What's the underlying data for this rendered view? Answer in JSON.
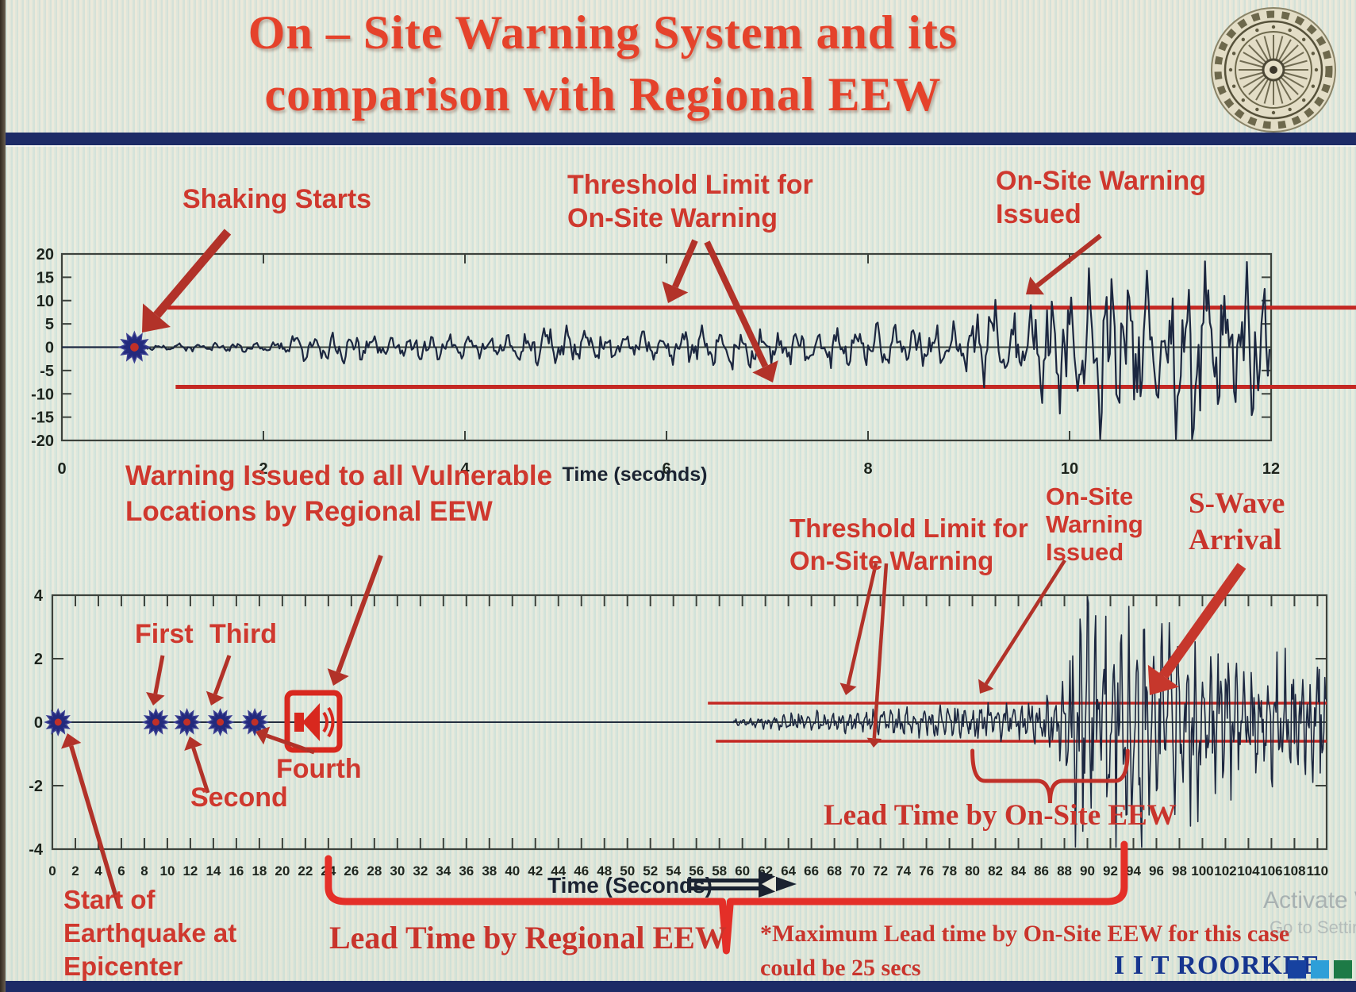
{
  "header": {
    "title_line1": "On – Site Warning System and its",
    "title_line2": "comparison with Regional EEW",
    "logo_name": "iit-roorkee-emblem"
  },
  "top_section": {
    "annotations": {
      "shaking_starts": "Shaking Starts",
      "threshold_limit": "Threshold Limit for\nOn-Site Warning",
      "warning_issued": "On-Site Warning\nIssued"
    }
  },
  "bottom_section": {
    "annotations": {
      "regional_warning": "Warning Issued to all Vulnerable\nLocations by Regional EEW",
      "first": "First",
      "third": "Third",
      "second": "Second",
      "fourth": "Fourth",
      "threshold_limit": "Threshold Limit for\nOn-Site Warning",
      "onsite_issued": "On-Site\nWarning\nIssued",
      "swave": "S-Wave\nArrival",
      "lead_onsite": "Lead Time by On-Site EEW",
      "lead_regional": "Lead Time by Regional EEW",
      "start_quake": "Start of\nEarthquake at\nEpicenter",
      "max_note_1": "*Maximum Lead time by On-Site EEW for this case",
      "max_note_2": "could be 25 secs"
    }
  },
  "footer": {
    "brand": "I I T ROORKEE",
    "squares": [
      "#1742a0",
      "#2e9fd8",
      "#1d7a46"
    ]
  },
  "watermark": {
    "line1": "Activate Win",
    "line2": "Go to Settings"
  },
  "colors": {
    "title_red": "#e5422b",
    "annotation_red": "#cf382e",
    "serif_red": "#c9342c",
    "arrow_red": "#b23229",
    "threshold_red": "#c42823",
    "bracket_red": "#e42f28",
    "waveform_navy": "#1c2740",
    "axis": "#3c423c",
    "tick_text": "#1d241d",
    "navy_bar": "#1d2b66",
    "brand_navy": "#16358f",
    "marker_blue": "#232a7d",
    "marker_center_red": "#c03028"
  },
  "chart_data": [
    {
      "type": "line",
      "title": "",
      "xlabel": "Time (seconds)",
      "ylabel": "",
      "xlim": [
        0,
        12
      ],
      "ylim": [
        -20,
        20
      ],
      "xticks": [
        0,
        2,
        4,
        6,
        8,
        10,
        12
      ],
      "yticks": [
        20,
        15,
        10,
        5,
        0,
        -5,
        -10,
        -15,
        -20
      ],
      "grid": false,
      "thresholds": [
        8.5,
        -8.5
      ],
      "threshold_span": [
        1.05,
        12.85
      ],
      "events": [
        {
          "name": "shaking-starts",
          "x": 0.72,
          "y": 0
        },
        {
          "name": "onsite-warning-issued",
          "x": 9.2,
          "y": 8.5
        }
      ],
      "envelope": [
        [
          0,
          0
        ],
        [
          0.7,
          0
        ],
        [
          0.78,
          0.6
        ],
        [
          1.4,
          0.8
        ],
        [
          2.1,
          1.1
        ],
        [
          2.45,
          3.6
        ],
        [
          2.8,
          3.2
        ],
        [
          3.2,
          2.1
        ],
        [
          3.7,
          2.7
        ],
        [
          4.2,
          2.0
        ],
        [
          4.7,
          3.2
        ],
        [
          5.1,
          4.1
        ],
        [
          5.5,
          2.6
        ],
        [
          6.0,
          3.0
        ],
        [
          6.5,
          4.3
        ],
        [
          7.0,
          3.3
        ],
        [
          7.6,
          3.7
        ],
        [
          8.1,
          4.4
        ],
        [
          8.6,
          3.8
        ],
        [
          9.0,
          5.2
        ],
        [
          9.2,
          9.3
        ],
        [
          9.45,
          6.0
        ],
        [
          9.8,
          11.0
        ],
        [
          10.1,
          13.5
        ],
        [
          10.35,
          19.0
        ],
        [
          10.65,
          12.0
        ],
        [
          11.0,
          17.0
        ],
        [
          11.3,
          19.0
        ],
        [
          11.6,
          13.0
        ],
        [
          11.85,
          16.5
        ],
        [
          12.0,
          12.0
        ]
      ]
    },
    {
      "type": "line",
      "title": "",
      "xlabel": "Time (Seconds)",
      "ylabel": "",
      "xlim": [
        0,
        110.8
      ],
      "ylim": [
        -4,
        4
      ],
      "xtick_min": 0,
      "xtick_max": 110,
      "xtick_step": 2,
      "yticks": [
        4,
        2,
        0,
        -2,
        -4
      ],
      "grid": false,
      "thresholds": [
        0.6,
        -0.6
      ],
      "threshold_span": [
        57,
        110.8
      ],
      "markers": [
        {
          "name": "epicenter",
          "x": 0.5
        },
        {
          "name": "first-warning",
          "x": 9.0
        },
        {
          "name": "second-warning",
          "x": 11.7
        },
        {
          "name": "third-warning",
          "x": 14.6
        },
        {
          "name": "fourth-warning",
          "x": 17.6
        }
      ],
      "siren_x": 22.7,
      "events": [
        {
          "name": "onsite-warning-issued",
          "x": 80.5
        },
        {
          "name": "s-wave-arrival",
          "x": 93
        }
      ],
      "lead_time_onsite_span": [
        80,
        93.5
      ],
      "lead_time_regional_span": [
        24,
        93.2
      ],
      "max_lead_time_note_secs": 25,
      "envelope": [
        [
          0,
          0
        ],
        [
          59.0,
          0
        ],
        [
          59.5,
          0.12
        ],
        [
          61,
          0.2
        ],
        [
          64,
          0.28
        ],
        [
          68,
          0.33
        ],
        [
          72,
          0.38
        ],
        [
          76,
          0.42
        ],
        [
          80,
          0.55
        ],
        [
          83,
          0.5
        ],
        [
          85,
          0.65
        ],
        [
          87,
          0.9
        ],
        [
          88,
          1.6
        ],
        [
          89,
          2.6
        ],
        [
          90,
          3.3
        ],
        [
          91,
          2.6
        ],
        [
          92,
          2.9
        ],
        [
          93,
          3.4
        ],
        [
          94,
          2.8
        ],
        [
          95,
          3.2
        ],
        [
          96,
          2.6
        ],
        [
          97,
          2.9
        ],
        [
          98,
          2.2
        ],
        [
          99,
          2.5
        ],
        [
          100,
          2.1
        ],
        [
          101,
          2.4
        ],
        [
          102,
          1.9
        ],
        [
          103,
          2.2
        ],
        [
          104,
          1.8
        ],
        [
          105,
          2.1
        ],
        [
          106,
          1.7
        ],
        [
          107,
          2.0
        ],
        [
          108,
          1.7
        ],
        [
          109,
          1.9
        ],
        [
          110.8,
          1.6
        ]
      ]
    }
  ]
}
